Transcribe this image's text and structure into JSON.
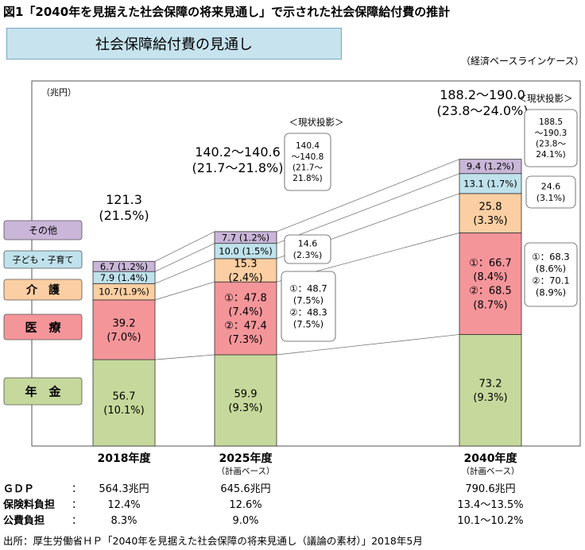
{
  "figure_title": "図1「2040年を見据えた社会保障の将来見通し」で示された社会保障給付費の推計",
  "chart_title": "社会保障給付費の見通し",
  "case_label": "（経済ベースラインケース）",
  "unit_label": "（兆円）",
  "colors": {
    "年金": "#c6d89b",
    "医療": "#f4959a",
    "介護": "#fbcfa3",
    "子ども・子育て": "#bfe2ec",
    "その他": "#c9b6d8"
  },
  "legend": [
    "その他",
    "子ども・子育て",
    "介　護",
    "医　療",
    "年　金"
  ],
  "chart_data": {
    "type": "bar",
    "stacked": true,
    "categories": [
      "2018年度",
      "2025年度",
      "2040年度"
    ],
    "category_sublabels": [
      "",
      "（計画ベース）",
      "（計画ベース）"
    ],
    "series": [
      {
        "name": "年金",
        "values": [
          56.7,
          59.9,
          73.2
        ],
        "labels": [
          "56.7\n(10.1%)",
          "59.9\n(9.3%)",
          "73.2\n(9.3%)"
        ]
      },
      {
        "name": "医療",
        "values": [
          39.2,
          47.8,
          66.7
        ],
        "labels": [
          "39.2\n(7.0%)",
          "①：47.8\n(7.4%)\n②：47.4\n(7.3%)",
          "①：66.7\n(8.4%)\n②：68.5\n(8.7%)"
        ]
      },
      {
        "name": "介護",
        "values": [
          10.7,
          15.3,
          25.8
        ],
        "labels": [
          "10.7(1.9%)",
          "15.3\n(2.4%)",
          "25.8\n(3.3%)"
        ]
      },
      {
        "name": "子ども・子育て",
        "values": [
          7.9,
          10.0,
          13.1
        ],
        "labels": [
          "7.9 (1.4%)",
          "10.0 (1.5%)",
          "13.1 (1.7%)"
        ]
      },
      {
        "name": "その他",
        "values": [
          6.7,
          7.7,
          9.4
        ],
        "labels": [
          "6.7 (1.2%)",
          "7.7 (1.2%)",
          "9.4 (1.2%)"
        ]
      }
    ],
    "totals": [
      "121.3\n(21.5%)",
      "140.2〜140.6\n(21.7〜21.8%)",
      "188.2〜190.0\n(23.8〜24.0%)"
    ],
    "current_projection_label": "＜現状投影＞",
    "current_projection": {
      "2025年度": {
        "total": "140.4\n〜140.8\n(21.7〜\n21.8%)",
        "介護": "14.6\n(2.3%)",
        "医療": "①：48.7\n(7.5%)\n②：48.3\n(7.5%)"
      },
      "2040年度": {
        "total": "188.5\n〜190.3\n(23.8〜\n24.1%)",
        "介護": "24.6\n(3.1%)",
        "医療": "①：68.3\n(8.6%)\n②：70.1\n(8.9%)"
      }
    }
  },
  "footer_rows": [
    {
      "label": "ＧＤＰ",
      "values": [
        "564.3兆円",
        "645.6兆円",
        "790.6兆円"
      ]
    },
    {
      "label": "保険料負担",
      "values": [
        "12.4%",
        "12.6%",
        "13.4〜13.5%"
      ]
    },
    {
      "label": "公費負担",
      "values": [
        "8.3%",
        "9.0%",
        "10.1〜10.2%"
      ]
    }
  ],
  "footer_colon": "：",
  "source": "出所：厚生労働省ＨＰ「2040年を見据えた社会保障の将来見通し（議論の素材）」2018年5月"
}
